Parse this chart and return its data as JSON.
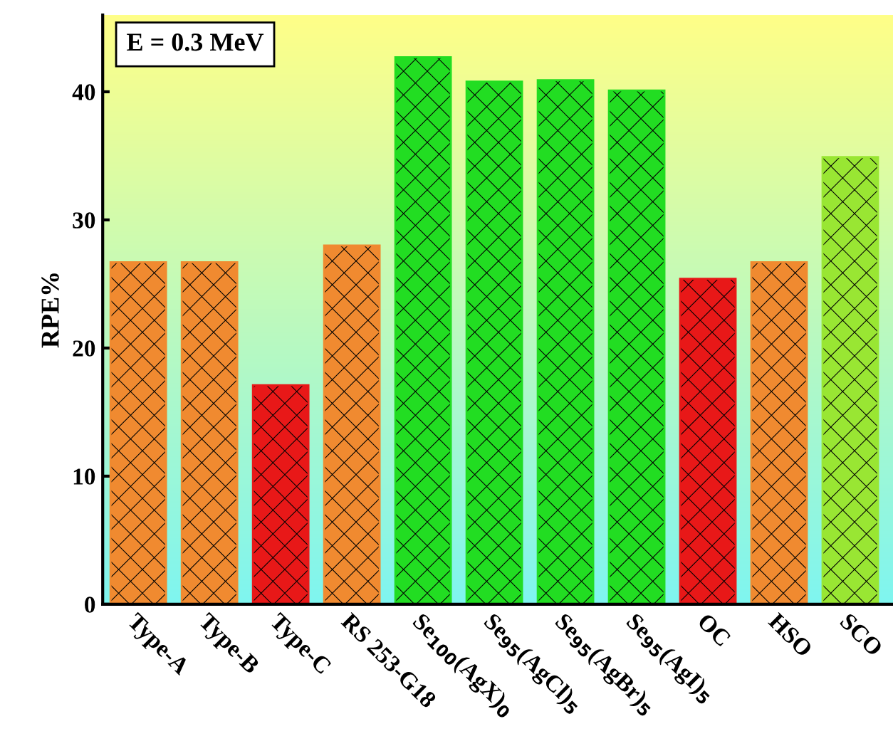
{
  "chart_data": {
    "type": "bar",
    "ylabel": "RPE%",
    "categories": [
      "Type-A",
      "Type-B",
      "Type-C",
      "RS 253-G18",
      "Se$_{100}$(AgX)$_{0}$",
      "Se$_{95}$(AgCl)$_{5}$",
      "Se$_{95}$(AgBr)$_{5}$",
      "Se$_{95}$(AgI)$_{5}$",
      "OC",
      "HSO",
      "SCO"
    ],
    "values": [
      26.7,
      26.7,
      17.1,
      28.0,
      42.7,
      40.8,
      40.9,
      40.1,
      25.4,
      26.7,
      34.9
    ],
    "colors": [
      "#f08a30",
      "#f08a30",
      "#e81818",
      "#f08a30",
      "#22dd22",
      "#22dd22",
      "#22dd22",
      "#22dd22",
      "#e81818",
      "#f08a30",
      "#99e633"
    ],
    "ylim": [
      0,
      46
    ],
    "yticks": [
      0,
      10,
      20,
      30,
      40
    ],
    "grid": false,
    "legend": false,
    "annotations": [
      "E = 0.3 MeV"
    ]
  }
}
